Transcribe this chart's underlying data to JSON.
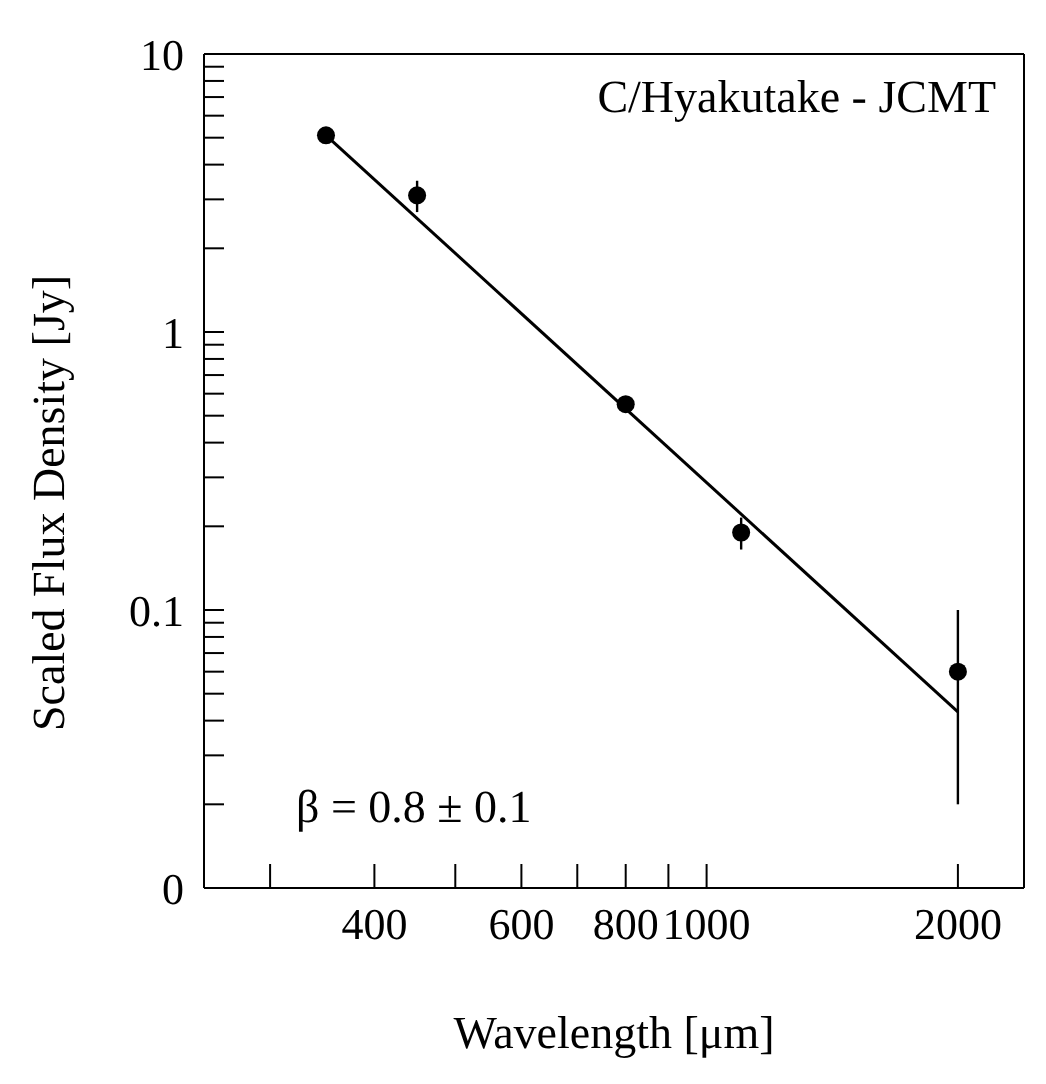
{
  "chart_data": {
    "type": "scatter",
    "xlabel": "Wavelength [μm]",
    "ylabel": "Scaled Flux Density [Jy]",
    "log": "xy",
    "xlim": [
      250,
      2400
    ],
    "ylim": [
      0.01,
      10
    ],
    "xticks": [
      {
        "value": 300,
        "label": null
      },
      400,
      {
        "value": 500,
        "label": null
      },
      600,
      {
        "value": 700,
        "label": null
      },
      800,
      {
        "value": 900,
        "label": null
      },
      1000,
      2000
    ],
    "yticks": [
      {
        "value": 0.01,
        "label": "0"
      },
      {
        "value": 0.02,
        "label": null
      },
      {
        "value": 0.03,
        "label": null
      },
      {
        "value": 0.04,
        "label": null
      },
      {
        "value": 0.05,
        "label": null
      },
      {
        "value": 0.06,
        "label": null
      },
      {
        "value": 0.07,
        "label": null
      },
      {
        "value": 0.08,
        "label": null
      },
      {
        "value": 0.09,
        "label": null
      },
      0.1,
      {
        "value": 0.2,
        "label": null
      },
      {
        "value": 0.3,
        "label": null
      },
      {
        "value": 0.4,
        "label": null
      },
      {
        "value": 0.5,
        "label": null
      },
      {
        "value": 0.6,
        "label": null
      },
      {
        "value": 0.7,
        "label": null
      },
      {
        "value": 0.8,
        "label": null
      },
      {
        "value": 0.9,
        "label": null
      },
      1,
      {
        "value": 2,
        "label": null
      },
      {
        "value": 3,
        "label": null
      },
      {
        "value": 4,
        "label": null
      },
      {
        "value": 5,
        "label": null
      },
      {
        "value": 6,
        "label": null
      },
      {
        "value": 7,
        "label": null
      },
      {
        "value": 8,
        "label": null
      },
      {
        "value": 9,
        "label": null
      },
      10
    ],
    "grid": false,
    "legend": false,
    "series": [
      {
        "color": "#000000",
        "marker": "circle",
        "x": [
          350,
          450,
          800,
          1100,
          2000
        ],
        "values": [
          5.1,
          3.1,
          0.55,
          0.19,
          0.06
        ],
        "errors": [
          null,
          [
            2.7,
            3.5
          ],
          null,
          [
            0.165,
            0.215
          ],
          [
            0.02,
            0.1
          ]
        ]
      },
      {
        "type": "line",
        "color": "#000000",
        "marker": "none",
        "line_style": "solid",
        "x": [
          350,
          2000
        ],
        "values": [
          5.1,
          0.043
        ]
      }
    ],
    "annotations": [
      "C/Hyakutake - JCMT",
      "β = 0.8 ± 0.1"
    ]
  }
}
